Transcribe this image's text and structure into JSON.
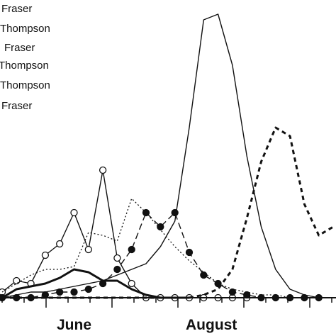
{
  "chart_data": {
    "type": "line",
    "legend": {
      "placement": "top-left",
      "entries": [
        "Fraser",
        "Thompson",
        "Fraser",
        "Thompson",
        "Thompson",
        "Fraser"
      ]
    },
    "x_tick_labels": [
      "June",
      "August"
    ],
    "x_range": [
      0,
      23
    ],
    "y_range": [
      0,
      100
    ],
    "grid": false,
    "series": [
      {
        "style": "solid-thin",
        "x": [
          0,
          1,
          2,
          3,
          4,
          5,
          6,
          7,
          8,
          9,
          10,
          11,
          12,
          13,
          14,
          15,
          16,
          17,
          18,
          19,
          20,
          21,
          22,
          23
        ],
        "y": [
          0,
          1,
          2,
          2,
          3,
          4,
          5,
          6,
          8,
          10,
          12,
          18,
          27,
          60,
          98,
          100,
          82,
          50,
          25,
          10,
          3,
          1,
          0,
          0
        ]
      },
      {
        "style": "solid-open-circles",
        "x": [
          0,
          1,
          2,
          3,
          4,
          5,
          6,
          7,
          8,
          9,
          10,
          11,
          12,
          13,
          14,
          15,
          16,
          17
        ],
        "y": [
          2,
          6,
          5,
          15,
          19,
          30,
          17,
          45,
          14,
          5,
          0,
          0,
          0,
          0,
          0,
          0,
          0,
          0
        ]
      },
      {
        "style": "dotted",
        "x": [
          0,
          1,
          2,
          3,
          4,
          5,
          6,
          7,
          8,
          9,
          10,
          11,
          12,
          13,
          14,
          15,
          16,
          17,
          18,
          19,
          20,
          21
        ],
        "y": [
          2,
          5,
          8,
          10,
          10,
          11,
          23,
          22,
          20,
          35,
          30,
          24,
          18,
          13,
          9,
          5,
          3,
          2,
          1,
          1,
          0,
          0
        ]
      },
      {
        "style": "dashed-filled-circles",
        "x": [
          0,
          1,
          2,
          3,
          4,
          5,
          6,
          7,
          8,
          9,
          10,
          11,
          12,
          13,
          14,
          15,
          16,
          17,
          18,
          19,
          20,
          21,
          22
        ],
        "y": [
          0,
          0,
          0,
          1,
          2,
          2,
          3,
          5,
          10,
          17,
          30,
          25,
          30,
          16,
          8,
          5,
          2,
          1,
          0,
          0,
          0,
          0,
          0
        ]
      },
      {
        "style": "solid-thick",
        "x": [
          0,
          1,
          2,
          3,
          4,
          5,
          6,
          7,
          8,
          9,
          10,
          11,
          12,
          13
        ],
        "y": [
          0,
          3,
          4,
          5,
          7,
          10,
          9,
          6,
          6,
          3,
          1,
          0,
          0,
          0
        ]
      },
      {
        "style": "dashed-thick",
        "x": [
          0,
          1,
          2,
          3,
          4,
          5,
          6,
          7,
          8,
          9,
          10,
          11,
          12,
          13,
          14,
          15,
          16,
          17,
          18,
          19,
          20,
          21,
          22,
          23
        ],
        "y": [
          0,
          0,
          0,
          0,
          0,
          0,
          0,
          0,
          0,
          0,
          0,
          0,
          0,
          0,
          1,
          3,
          10,
          28,
          48,
          60,
          57,
          33,
          22,
          25
        ]
      }
    ]
  }
}
